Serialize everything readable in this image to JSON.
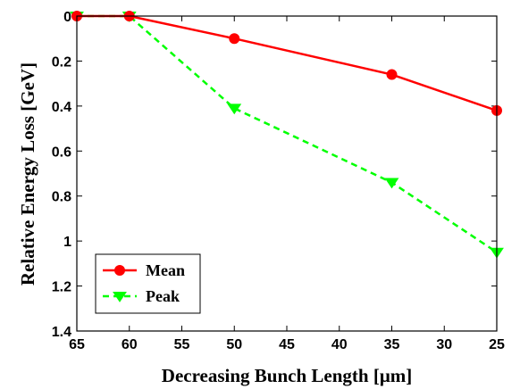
{
  "chart_data": {
    "type": "line",
    "title": "",
    "xlabel": "Decreasing Bunch Length [μm]",
    "ylabel": "Relative Energy Loss [GeV]",
    "x": [
      65,
      60,
      50,
      35,
      25
    ],
    "xlim": [
      65,
      25
    ],
    "x_reversed": true,
    "xticks": [
      65,
      60,
      55,
      50,
      45,
      40,
      35,
      30,
      25
    ],
    "xtick_labels": [
      "65",
      "60",
      "55",
      "50",
      "45",
      "40",
      "35",
      "30",
      "25"
    ],
    "ylim": [
      0,
      1.4
    ],
    "y_reversed": true,
    "yticks": [
      0,
      0.2,
      0.4,
      0.6,
      0.8,
      1,
      1.2,
      1.4
    ],
    "ytick_labels": [
      "0",
      "0.2",
      "0.4",
      "0.6",
      "0.8",
      "1",
      "1.2",
      "1.4"
    ],
    "grid": false,
    "legend_position": "bottom-left",
    "series": [
      {
        "name": "Mean",
        "values": [
          0,
          0,
          0.1,
          0.26,
          0.42
        ],
        "color": "#ff0000",
        "line_style": "solid",
        "marker": "circle"
      },
      {
        "name": "Peak",
        "values": [
          0,
          0,
          0.41,
          0.74,
          1.05
        ],
        "color": "#00ff00",
        "line_style": "dashed",
        "marker": "triangle-down"
      }
    ]
  }
}
